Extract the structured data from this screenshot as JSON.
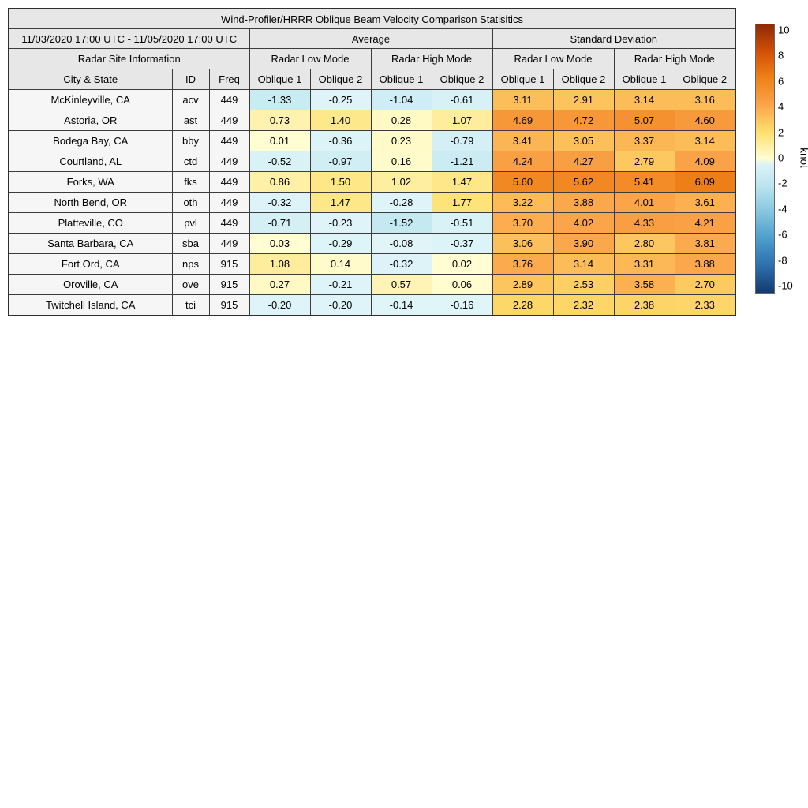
{
  "title": "Wind-Profiler/HRRR Oblique Beam Velocity Comparison Statisitics",
  "header": {
    "date_range": "11/03/2020 17:00 UTC - 11/05/2020 17:00 UTC",
    "group_average": "Average",
    "group_std": "Standard Deviation",
    "site_info": "Radar Site Information",
    "mode_low": "Radar Low Mode",
    "mode_high": "Radar High Mode",
    "col_city": "City & State",
    "col_id": "ID",
    "col_freq": "Freq",
    "col_oblique1": "Oblique 1",
    "col_oblique2": "Oblique 2"
  },
  "chart_data": {
    "type": "heatmap",
    "title": "Wind-Profiler/HRRR Oblique Beam Velocity Comparison Statisitics",
    "column_groups": [
      {
        "group": "Average",
        "modes": [
          "Radar Low Mode",
          "Radar High Mode"
        ],
        "cols": [
          "Oblique 1",
          "Oblique 2",
          "Oblique 1",
          "Oblique 2"
        ]
      },
      {
        "group": "Standard Deviation",
        "modes": [
          "Radar Low Mode",
          "Radar High Mode"
        ],
        "cols": [
          "Oblique 1",
          "Oblique 2",
          "Oblique 1",
          "Oblique 2"
        ]
      }
    ],
    "rows": [
      {
        "city": "McKinleyville, CA",
        "id": "acv",
        "freq": 449,
        "values": [
          -1.33,
          -0.25,
          -1.04,
          -0.61,
          3.11,
          2.91,
          3.14,
          3.16
        ]
      },
      {
        "city": "Astoria, OR",
        "id": "ast",
        "freq": 449,
        "values": [
          0.73,
          1.4,
          0.28,
          1.07,
          4.69,
          4.72,
          5.07,
          4.6
        ]
      },
      {
        "city": "Bodega Bay, CA",
        "id": "bby",
        "freq": 449,
        "values": [
          0.01,
          -0.36,
          0.23,
          -0.79,
          3.41,
          3.05,
          3.37,
          3.14
        ]
      },
      {
        "city": "Courtland, AL",
        "id": "ctd",
        "freq": 449,
        "values": [
          -0.52,
          -0.97,
          0.16,
          -1.21,
          4.24,
          4.27,
          2.79,
          4.09
        ]
      },
      {
        "city": "Forks, WA",
        "id": "fks",
        "freq": 449,
        "values": [
          0.86,
          1.5,
          1.02,
          1.47,
          5.6,
          5.62,
          5.41,
          6.09
        ]
      },
      {
        "city": "North Bend, OR",
        "id": "oth",
        "freq": 449,
        "values": [
          -0.32,
          1.47,
          -0.28,
          1.77,
          3.22,
          3.88,
          4.01,
          3.61
        ]
      },
      {
        "city": "Platteville, CO",
        "id": "pvl",
        "freq": 449,
        "values": [
          -0.71,
          -0.23,
          -1.52,
          -0.51,
          3.7,
          4.02,
          4.33,
          4.21
        ]
      },
      {
        "city": "Santa Barbara, CA",
        "id": "sba",
        "freq": 449,
        "values": [
          0.03,
          -0.29,
          -0.08,
          -0.37,
          3.06,
          3.9,
          2.8,
          3.81
        ]
      },
      {
        "city": "Fort Ord, CA",
        "id": "nps",
        "freq": 915,
        "values": [
          1.08,
          0.14,
          -0.32,
          0.02,
          3.76,
          3.14,
          3.31,
          3.88
        ]
      },
      {
        "city": "Oroville, CA",
        "id": "ove",
        "freq": 915,
        "values": [
          0.27,
          -0.21,
          0.57,
          0.06,
          2.89,
          2.53,
          3.58,
          2.7
        ]
      },
      {
        "city": "Twitchell Island, CA",
        "id": "tci",
        "freq": 915,
        "values": [
          -0.2,
          -0.2,
          -0.14,
          -0.16,
          2.28,
          2.32,
          2.38,
          2.33
        ]
      }
    ],
    "colorbar": {
      "label": "knot",
      "min": -10,
      "max": 10,
      "ticks": [
        10,
        8,
        6,
        4,
        2,
        0,
        -2,
        -4,
        -6,
        -8,
        -10
      ],
      "position": "right"
    },
    "colormap": {
      "positive_stops": [
        [
          0,
          "#fffdd2"
        ],
        [
          2,
          "#fedf6e"
        ],
        [
          4,
          "#fba44a"
        ],
        [
          6,
          "#ef8117"
        ],
        [
          8,
          "#d14f07"
        ],
        [
          10,
          "#8e2a06"
        ]
      ],
      "negative_stops": [
        [
          0,
          "#e3f6f9"
        ],
        [
          -2,
          "#bce5ef"
        ],
        [
          -4,
          "#85c5de"
        ],
        [
          -6,
          "#4b9dcb"
        ],
        [
          -8,
          "#2c6fae"
        ],
        [
          -10,
          "#133a6d"
        ]
      ]
    },
    "style_colors": {
      "header_bg": "#e7e7e7",
      "label_bg": "#f6f6f6",
      "border": "#3c3c3c"
    }
  }
}
